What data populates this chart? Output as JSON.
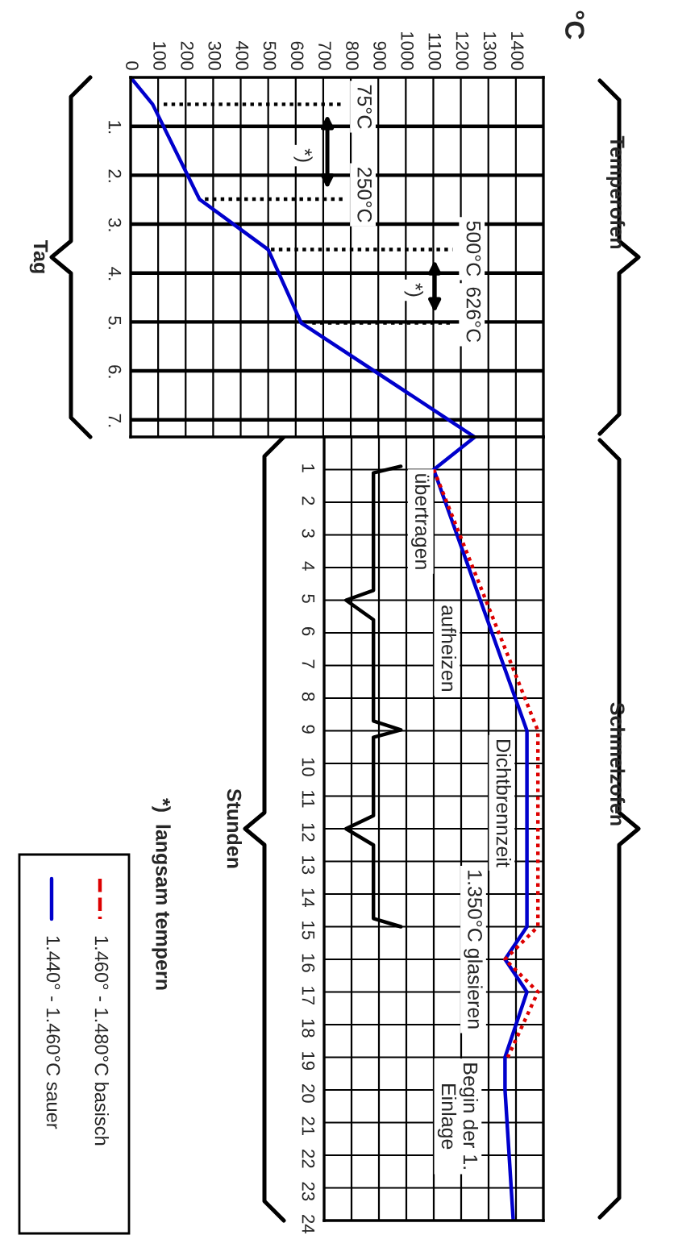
{
  "chart_data": [
    {
      "type": "line",
      "ylabel": "Tag",
      "xlim": [
        0,
        1500
      ],
      "xticks": [
        0,
        100,
        200,
        300,
        400,
        500,
        600,
        700,
        800,
        900,
        1000,
        1100,
        1200,
        1300,
        1400
      ],
      "ylim": [
        7.35,
        0
      ],
      "yticks": [
        {
          "value": 1,
          "label": "1."
        },
        {
          "value": 2,
          "label": "2."
        },
        {
          "value": 3,
          "label": "3."
        },
        {
          "value": 4,
          "label": "4."
        },
        {
          "value": 5,
          "label": "5."
        },
        {
          "value": 6,
          "label": "6."
        },
        {
          "value": 7,
          "label": "7."
        }
      ],
      "grid": true,
      "marker": "none",
      "series": [
        {
          "color": "#0000cc",
          "x": [
            0,
            80,
            250,
            500,
            620,
            1250
          ],
          "values": [
            0,
            0.55,
            2.49,
            3.52,
            5.02,
            7.35
          ]
        },
        {
          "color": "#000000",
          "line_style": "dotted",
          "x": [
            120,
            770
          ],
          "values": [
            0.55,
            0.55
          ]
        },
        {
          "color": "#000000",
          "line_style": "dotted",
          "x": [
            270,
            770
          ],
          "values": [
            2.49,
            2.49
          ]
        },
        {
          "color": "#000000",
          "line_style": "dotted",
          "x": [
            510,
            1170
          ],
          "values": [
            3.52,
            3.52
          ]
        },
        {
          "color": "#000000",
          "line_style": "dotted",
          "x": [
            660,
            1160
          ],
          "values": [
            5.02,
            5.02
          ]
        }
      ],
      "annotations": [
        {
          "text": "75°C",
          "x": 844,
          "y": 0.6
        },
        {
          "text": "250°C",
          "x": 844,
          "y": 2.4
        },
        {
          "text": "*)",
          "x": 627,
          "y": 1.6
        },
        {
          "text": "500°C",
          "x": 1240,
          "y": 3.5
        },
        {
          "text": "626°C",
          "x": 1240,
          "y": 4.85
        },
        {
          "text": "*)",
          "x": 1029,
          "y": 4.35
        },
        "Temperofen",
        "°C"
      ]
    },
    {
      "type": "line",
      "ylabel": "Stunden",
      "xlim": [
        700,
        1500
      ],
      "xticks": [
        700,
        800,
        900,
        1000,
        1100,
        1200,
        1300,
        1400,
        1500
      ],
      "ylim": [
        24,
        0
      ],
      "yticks": [
        1,
        2,
        3,
        4,
        5,
        6,
        7,
        8,
        9,
        10,
        11,
        12,
        13,
        14,
        15,
        16,
        17,
        18,
        19,
        20,
        21,
        22,
        23,
        24
      ],
      "tick_labels": "y",
      "grid": true,
      "legend": "left",
      "marker": "none",
      "series": [
        {
          "name": "1.460° - 1.480°C basisch",
          "color": "#dd0000",
          "line_style": "dotted",
          "x": [
            1100,
            1480,
            1480,
            1360,
            1480,
            1370
          ],
          "values": [
            1,
            9,
            15,
            16,
            17,
            19
          ]
        },
        {
          "name": "1.440° - 1.460°C sauer",
          "color": "#0000cc",
          "x": [
            1250,
            1100,
            1440,
            1440,
            1360,
            1440,
            1360,
            1360,
            1390
          ],
          "values": [
            0,
            1,
            9,
            15,
            16,
            17,
            19,
            20,
            24
          ]
        },
        {
          "color": "#000000",
          "x": [
            980,
            880,
            880,
            780,
            880,
            880,
            980,
            880,
            880,
            780,
            880,
            880,
            980
          ],
          "values": [
            0.9,
            1.1,
            4.7,
            5.0,
            5.6,
            8.7,
            8.97,
            9.2,
            11.6,
            12.0,
            12.5,
            14.75,
            15.0
          ]
        }
      ],
      "annotations": [
        "übertragen",
        "aufheizen",
        "Dichtbrennzeit",
        "1.350°C glasieren",
        "Begin der 1.\nEinlage",
        "Schmelzofen",
        "*)  langsam tempern"
      ]
    }
  ]
}
